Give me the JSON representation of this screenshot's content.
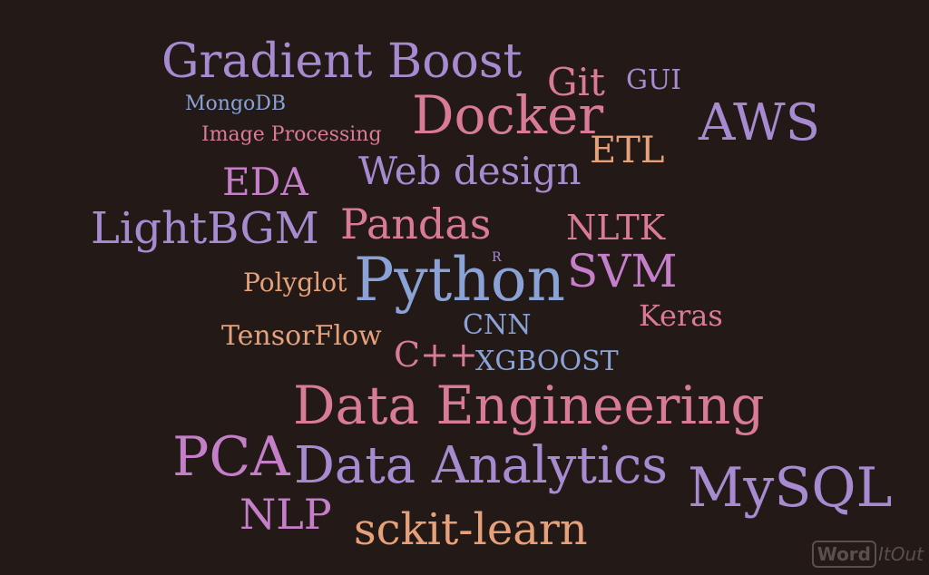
{
  "words": {
    "gradient_boost": "Gradient Boost",
    "git": "Git",
    "gui": "GUI",
    "mongodb": "MongoDB",
    "image_processing": "Image Processing",
    "docker": "Docker",
    "aws": "AWS",
    "etl": "ETL",
    "eda": "EDA",
    "web_design": "Web design",
    "lightbgm": "LightBGM",
    "pandas": "Pandas",
    "nltk": "NLTK",
    "r": "R",
    "svm": "SVM",
    "polyglot": "Polyglot",
    "python": "Python",
    "keras": "Keras",
    "tensorflow": "TensorFlow",
    "cnn": "CNN",
    "cpp": "C++",
    "xgboost": "XGBOOST",
    "data_engineering": "Data Engineering",
    "pca": "PCA",
    "data_analytics": "Data Analytics",
    "mysql": "MySQL",
    "nlp": "NLP",
    "sckit_learn": "sckit-learn"
  },
  "watermark": {
    "word": "Word",
    "it_out": "ItOut"
  },
  "colors": {
    "background": "#231a18",
    "purple": "#a78bd0",
    "pink": "#d97b96",
    "orange": "#e6a07a",
    "blue": "#8aa2d6",
    "violet": "#c57fc9"
  }
}
